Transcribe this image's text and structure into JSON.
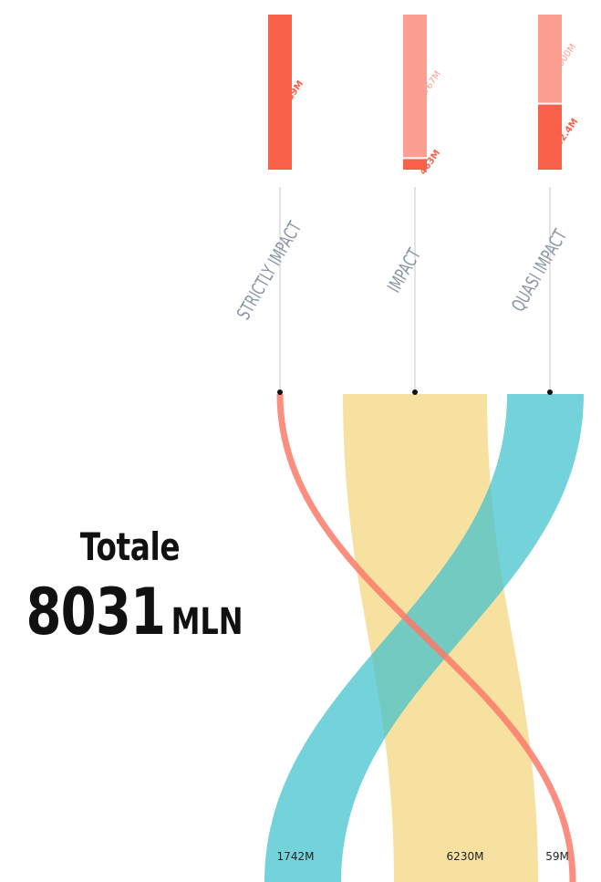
{
  "total": {
    "label": "Totale",
    "value": "8031",
    "unit": "MLN"
  },
  "colors": {
    "strictly": "#fb7a6a",
    "impact": "#f6df9c",
    "quasi": "#3fc1cc",
    "bar_dark": "#f9614a",
    "bar_light": "#fc9f92",
    "axis_label": "#8a94a6",
    "connector": "#c8c8c8"
  },
  "chart_data": [
    {
      "type": "bar",
      "title": "",
      "note": "stacked vertical bars per category, labels rotated",
      "categories": [
        "STRICTLY IMPACT",
        "IMPACT",
        "QUASI IMPACT"
      ],
      "series": [
        {
          "name": "",
          "values": [
            59,
            463,
            742.4
          ],
          "labels": [
            "59M",
            "463M",
            "742.4M"
          ],
          "color": "#f9614a"
        },
        {
          "name": "",
          "values": [
            0,
            5767,
            1000
          ],
          "labels": [
            "",
            "5767M",
            "1000M"
          ],
          "color": "#fc9f92"
        }
      ]
    },
    {
      "type": "area",
      "note": "sankey-like ribbons crossing from top categories to bottom totals",
      "categories": [
        "STRICTLY IMPACT",
        "IMPACT",
        "QUASI IMPACT"
      ],
      "values": [
        59,
        6230,
        1742
      ],
      "labels": [
        "59M",
        "6230M",
        "1742M"
      ],
      "bottom_order": [
        "QUASI IMPACT",
        "IMPACT",
        "STRICTLY IMPACT"
      ]
    }
  ]
}
